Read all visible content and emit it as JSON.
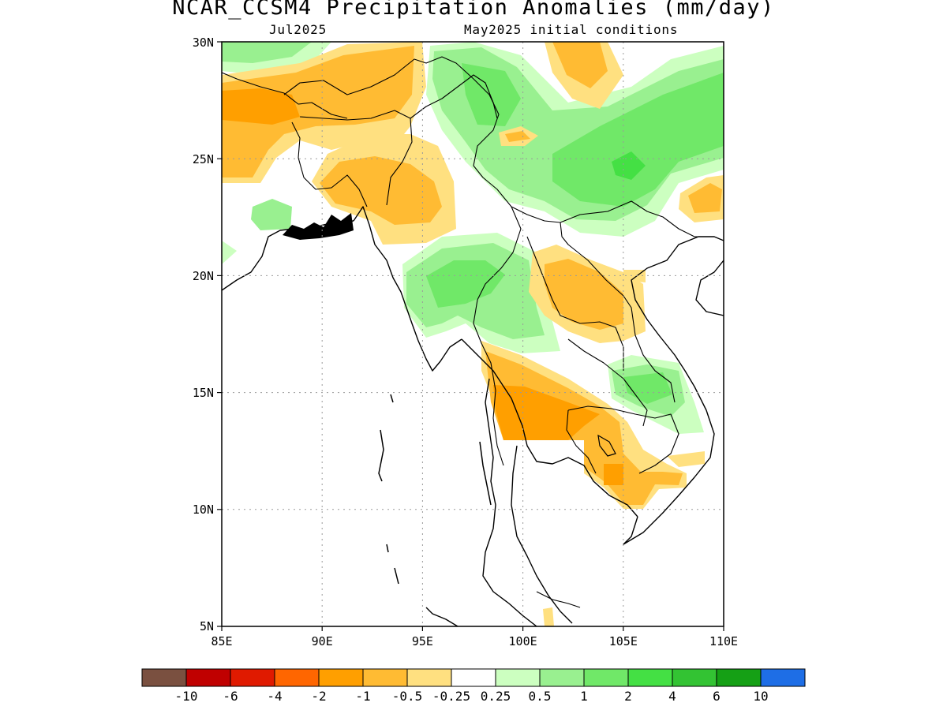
{
  "title": "NCAR_CCSM4 Precipitation Anomalies (mm/day)",
  "subtitle_left": "Jul2025",
  "subtitle_right": "May2025 initial conditions",
  "axes": {
    "lon": {
      "min": 85,
      "max": 110,
      "ticks": [
        "85E",
        "90E",
        "95E",
        "100E",
        "105E",
        "110E"
      ]
    },
    "lat": {
      "min": 5,
      "max": 30,
      "ticks": [
        "5N",
        "10N",
        "15N",
        "20N",
        "25N",
        "30N"
      ]
    }
  },
  "colorbar": {
    "colors": [
      "#7a5040",
      "#c00000",
      "#e01a00",
      "#ff6600",
      "#ff9f00",
      "#ffbb33",
      "#ffe080",
      "#ffffff",
      "#ccffc0",
      "#99f090",
      "#70e868",
      "#44e044",
      "#33c333",
      "#15a015",
      "#1e6ee6"
    ],
    "labels": [
      "-10",
      "-6",
      "-4",
      "-2",
      "-1",
      "-0.5",
      "-0.25",
      "0.25",
      "0.5",
      "1",
      "2",
      "4",
      "6",
      "10"
    ]
  },
  "map_regions": [
    {
      "name": "ne-india-tibet",
      "level": "-0.5 to -1",
      "color": "#ffbb33"
    },
    {
      "name": "bangladesh-myanmar-west",
      "level": "-0.5 to -1",
      "color": "#ffbb33"
    },
    {
      "name": "yunnan-south-china",
      "level": "1 to 2",
      "color": "#70e868"
    },
    {
      "name": "south-china-core",
      "level": "2 to 4",
      "color": "#44e044"
    },
    {
      "name": "central-myanmar",
      "level": "1 to 2",
      "color": "#70e868"
    },
    {
      "name": "laos-north",
      "level": "-0.5 to -1",
      "color": "#ffbb33"
    },
    {
      "name": "thailand-west-central",
      "level": "-1 to -2",
      "color": "#ff9f00"
    },
    {
      "name": "vietnam-central",
      "level": "1 to 2",
      "color": "#70e868"
    },
    {
      "name": "cambodia-vietnam-south",
      "level": "-0.5 to -1",
      "color": "#ffbb33"
    }
  ]
}
